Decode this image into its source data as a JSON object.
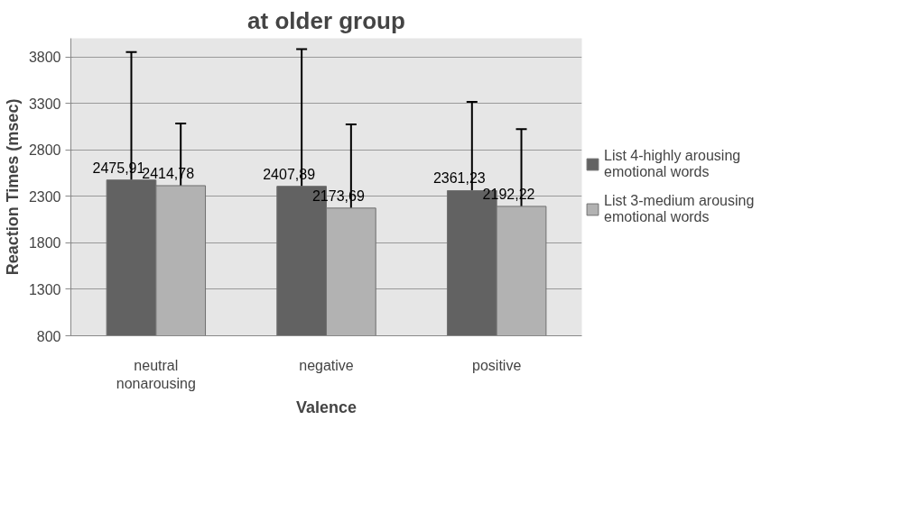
{
  "chart_data": {
    "type": "bar",
    "title": "at older group",
    "xlabel": "Valence",
    "ylabel": "Reaction Times (msec)",
    "categories": [
      "neutral nonarousing",
      "negative",
      "positive"
    ],
    "series": [
      {
        "name": "List 4-highly arousing emotional words",
        "color": "#626262",
        "values": [
          2475.91,
          2407.89,
          2361.23
        ],
        "errors": [
          1376,
          1475,
          955
        ],
        "value_labels": [
          "2475,91",
          "2407,89",
          "2361,23"
        ]
      },
      {
        "name": "List 3-medium arousing emotional words",
        "color": "#b2b2b2",
        "values": [
          2414.78,
          2173.69,
          2192.22
        ],
        "errors": [
          670,
          900,
          830
        ],
        "value_labels": [
          "2414,78",
          "2173,69",
          "2192,22"
        ]
      }
    ],
    "ylim": [
      800,
      4000
    ],
    "yticks": [
      800,
      1300,
      1800,
      2300,
      2800,
      3300,
      3800
    ],
    "grid": "y",
    "legend": "right"
  }
}
